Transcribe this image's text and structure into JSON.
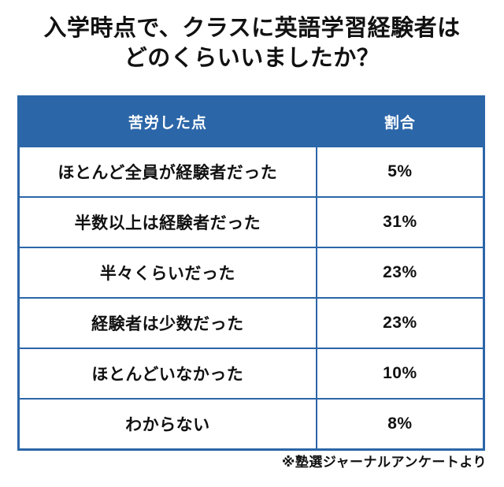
{
  "title": {
    "line1": "入学時点で、クラスに英語学習経験者は",
    "line2": "どのくらいいましたか？"
  },
  "table": {
    "headers": {
      "label": "苦労した点",
      "value": "割合"
    },
    "rows": [
      {
        "label": "ほとんど全員が経験者だった",
        "value": "5%"
      },
      {
        "label": "半数以上は経験者だった",
        "value": "31%"
      },
      {
        "label": "半々くらいだった",
        "value": "23%"
      },
      {
        "label": "経験者は少数だった",
        "value": "23%"
      },
      {
        "label": "ほとんどいなかった",
        "value": "10%"
      },
      {
        "label": "わからない",
        "value": "8%"
      }
    ]
  },
  "footer": {
    "note": "※塾選ジャーナルアンケートより"
  },
  "colors": {
    "header_bg": "#2b66a8",
    "border": "#2b66a8",
    "header_text": "#ffffff",
    "body_text": "#111111",
    "background": "#ffffff"
  },
  "chart_data": {
    "type": "table",
    "title": "入学時点で、クラスに英語学習経験者はどのくらいいましたか？",
    "columns": [
      "苦労した点",
      "割合"
    ],
    "categories": [
      "ほとんど全員が経験者だった",
      "半数以上は経験者だった",
      "半々くらいだった",
      "経験者は少数だった",
      "ほとんどいなかった",
      "わからない"
    ],
    "values_percent": [
      5,
      31,
      23,
      23,
      10,
      8
    ],
    "source_note": "※塾選ジャーナルアンケートより",
    "layout": {
      "header_style": "blue background, white bold text",
      "body_style": "white background, black bold centered text, blue grid borders",
      "note_position": "bottom-right"
    }
  }
}
